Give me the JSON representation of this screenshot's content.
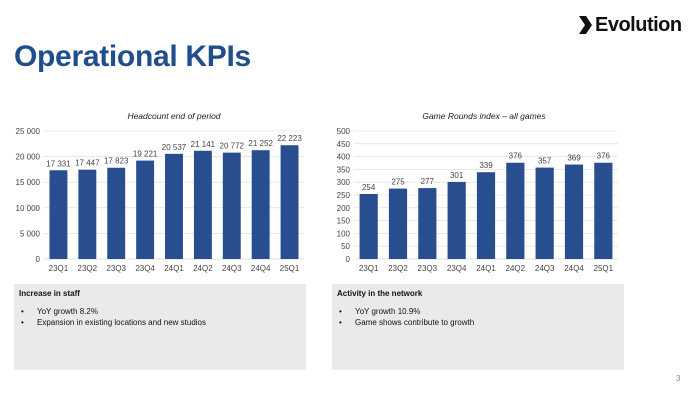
{
  "header": {
    "logo_text": "Evolution",
    "title": "Operational KPIs"
  },
  "colors": {
    "bar": "#284e8f",
    "title": "#1f4e8c",
    "box": "#eaeaea",
    "grid": "#d9d9d9"
  },
  "chart_data": [
    {
      "type": "bar",
      "title": "Headcount end of period",
      "categories": [
        "23Q1",
        "23Q2",
        "23Q3",
        "23Q4",
        "24Q1",
        "24Q2",
        "24Q3",
        "24Q4",
        "25Q1"
      ],
      "values": [
        17331,
        17447,
        17823,
        19221,
        20537,
        21141,
        20772,
        21252,
        22223
      ],
      "value_labels": [
        "17 331",
        "17 447",
        "17 823",
        "19 221",
        "20 537",
        "21 141",
        "20 772",
        "21 252",
        "22 223"
      ],
      "yticks": [
        0,
        5000,
        10000,
        15000,
        20000,
        25000
      ],
      "ytick_labels": [
        "0",
        "5 000",
        "10 000",
        "15 000",
        "20 000",
        "25 000"
      ],
      "ylim": [
        0,
        25000
      ],
      "grid": true,
      "xlabel": "",
      "ylabel": ""
    },
    {
      "type": "bar",
      "title": "Game Rounds index – all games",
      "categories": [
        "23Q1",
        "23Q2",
        "23Q3",
        "23Q4",
        "24Q1",
        "24Q2",
        "24Q3",
        "24Q4",
        "25Q1"
      ],
      "values": [
        254,
        275,
        277,
        301,
        339,
        376,
        357,
        369,
        376
      ],
      "value_labels": [
        "254",
        "275",
        "277",
        "301",
        "339",
        "376",
        "357",
        "369",
        "376"
      ],
      "yticks": [
        0,
        50,
        100,
        150,
        200,
        250,
        300,
        350,
        400,
        450,
        500
      ],
      "ytick_labels": [
        "0",
        "50",
        "100",
        "150",
        "200",
        "250",
        "300",
        "350",
        "400",
        "450",
        "500"
      ],
      "ylim": [
        0,
        500
      ],
      "grid": true,
      "xlabel": "",
      "ylabel": ""
    }
  ],
  "boxes": {
    "left": {
      "heading": "Increase in staff",
      "items": [
        "YoY growth 8.2%",
        "Expansion in existing locations and new studios"
      ]
    },
    "right": {
      "heading": "Activity in the network",
      "items": [
        "YoY growth 10.9%",
        "Game shows contribute to growth"
      ]
    }
  },
  "bullet_char": "•",
  "page_number": "3"
}
